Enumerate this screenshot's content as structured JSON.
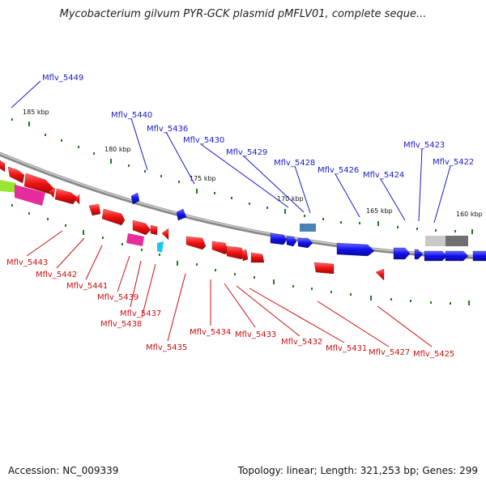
{
  "title": "Mycobacterium gilvum PYR-GCK plasmid pMFLV01, complete seque...",
  "footer": {
    "accession": "Accession: NC_009339",
    "summary": "Topology: linear; Length: 321,253 bp; Genes: 299"
  },
  "colors": {
    "forward_gene": "#2222ee",
    "reverse_gene": "#ee1111",
    "backbone": "#8a8a8a",
    "ticks": "#1e7a1e"
  },
  "kbp_labels": [
    "185 kbp",
    "180 kbp",
    "175 kbp",
    "170 kbp",
    "165 kbp",
    "160 kbp"
  ],
  "top_labels": [
    "Mflv_5449",
    "Mflv_5440",
    "Mflv_5436",
    "Mflv_5430",
    "Mflv_5429",
    "Mflv_5428",
    "Mflv_5426",
    "Mflv_5424",
    "Mflv_5423",
    "Mflv_5422"
  ],
  "bottom_labels": [
    "Mflv_5443",
    "Mflv_5442",
    "Mflv_5441",
    "Mflv_5439",
    "Mflv_5437",
    "Mflv_5438",
    "Mflv_5435",
    "Mflv_5434",
    "Mflv_5433",
    "Mflv_5432",
    "Mflv_5431",
    "Mflv_5427",
    "Mflv_5425"
  ]
}
